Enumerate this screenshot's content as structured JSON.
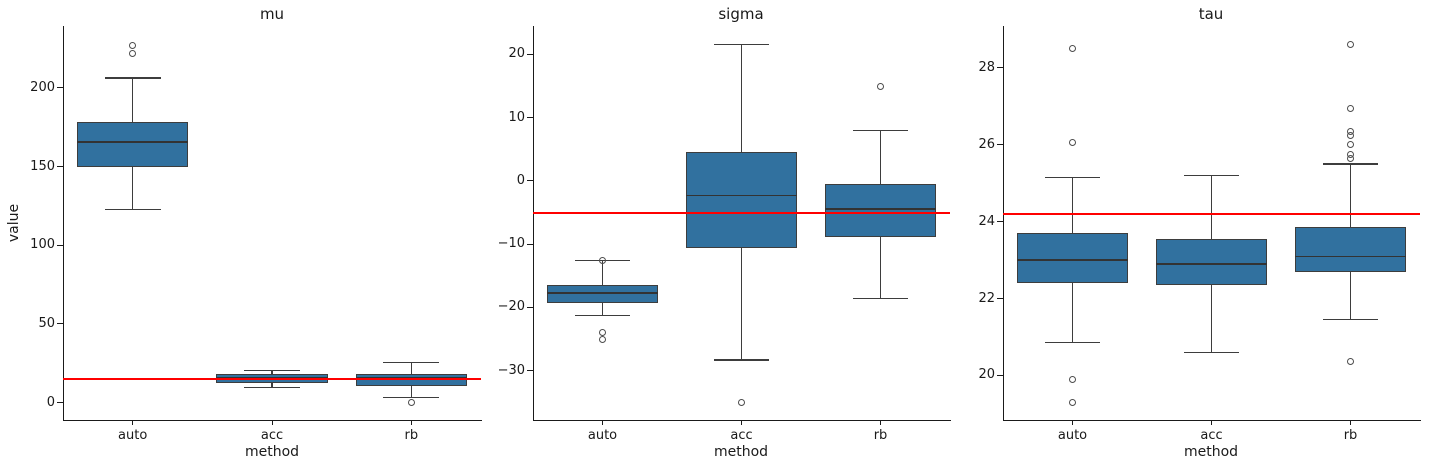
{
  "figure": {
    "kind": "seaborn-style boxplot grid, 3 facets sharing x categories",
    "facet_count": 3
  },
  "colors": {
    "box_fill": "#31719f",
    "box_edge": "#3d3d3d",
    "whisker": "#3d3d3d",
    "median": "#333333",
    "outlier_edge": "#4d4d4d",
    "refline": "#ff0000",
    "axis": "#1a1a1a",
    "background": "#ffffff"
  },
  "chart_data": [
    {
      "type": "box",
      "title": "mu",
      "xlabel": "method",
      "ylabel": "value",
      "categories": [
        "auto",
        "acc",
        "rb"
      ],
      "ylim": [
        -11.1,
        239.4
      ],
      "yticks": [
        {
          "value": 0,
          "label": "0"
        },
        {
          "value": 50,
          "label": "50"
        },
        {
          "value": 100,
          "label": "100"
        },
        {
          "value": 150,
          "label": "150"
        },
        {
          "value": 200,
          "label": "200"
        }
      ],
      "refline": 15,
      "boxes": [
        {
          "category": "auto",
          "whislo": 122.5,
          "q1": 149.8,
          "med": 165.7,
          "q3": 178.4,
          "whishi": 206.3,
          "outliers": [
            221.6,
            227.3
          ]
        },
        {
          "category": "acc",
          "whislo": 9.5,
          "q1": 12.5,
          "med": 16.0,
          "q3": 18.2,
          "whishi": 20.3,
          "outliers": []
        },
        {
          "category": "rb",
          "whislo": 3.2,
          "q1": 10.2,
          "med": 15.8,
          "q3": 18.4,
          "whishi": 25.4,
          "outliers": [
            0.2
          ]
        }
      ]
    },
    {
      "type": "box",
      "title": "sigma",
      "xlabel": "method",
      "ylabel": "",
      "categories": [
        "auto",
        "acc",
        "rb"
      ],
      "ylim": [
        -37.8,
        24.5
      ],
      "yticks": [
        {
          "value": -30,
          "label": "−30"
        },
        {
          "value": -20,
          "label": "−20"
        },
        {
          "value": -10,
          "label": "−10"
        },
        {
          "value": 0,
          "label": "0"
        },
        {
          "value": 10,
          "label": "10"
        },
        {
          "value": 20,
          "label": "20"
        }
      ],
      "refline": -5,
      "boxes": [
        {
          "category": "auto",
          "whislo": -21.3,
          "q1": -19.3,
          "med": -17.7,
          "q3": -16.4,
          "whishi": -12.6,
          "outliers": [
            -12.6,
            -24.0,
            -25.0
          ]
        },
        {
          "category": "acc",
          "whislo": -28.3,
          "q1": -10.6,
          "med": -2.3,
          "q3": 4.6,
          "whishi": 21.6,
          "outliers": [
            -35.1
          ]
        },
        {
          "category": "rb",
          "whislo": -18.6,
          "q1": -8.9,
          "med": -4.4,
          "q3": -0.5,
          "whishi": 8.0,
          "outliers": [
            15.0
          ]
        }
      ]
    },
    {
      "type": "box",
      "title": "tau",
      "xlabel": "method",
      "ylabel": "",
      "categories": [
        "auto",
        "acc",
        "rb"
      ],
      "ylim": [
        18.84,
        29.09
      ],
      "yticks": [
        {
          "value": 20,
          "label": "20"
        },
        {
          "value": 22,
          "label": "22"
        },
        {
          "value": 24,
          "label": "24"
        },
        {
          "value": 26,
          "label": "26"
        },
        {
          "value": 28,
          "label": "28"
        }
      ],
      "refline": 24.2,
      "boxes": [
        {
          "category": "auto",
          "whislo": 20.85,
          "q1": 22.4,
          "med": 23.0,
          "q3": 23.7,
          "whishi": 25.15,
          "outliers": [
            28.5,
            26.05,
            19.9,
            19.3
          ]
        },
        {
          "category": "acc",
          "whislo": 20.6,
          "q1": 22.35,
          "med": 22.9,
          "q3": 23.55,
          "whishi": 25.2,
          "outliers": []
        },
        {
          "category": "rb",
          "whislo": 21.45,
          "q1": 22.7,
          "med": 23.1,
          "q3": 23.85,
          "whishi": 25.5,
          "outliers": [
            28.6,
            26.95,
            26.35,
            26.25,
            26.0,
            25.75,
            25.65,
            20.35
          ]
        }
      ]
    }
  ]
}
